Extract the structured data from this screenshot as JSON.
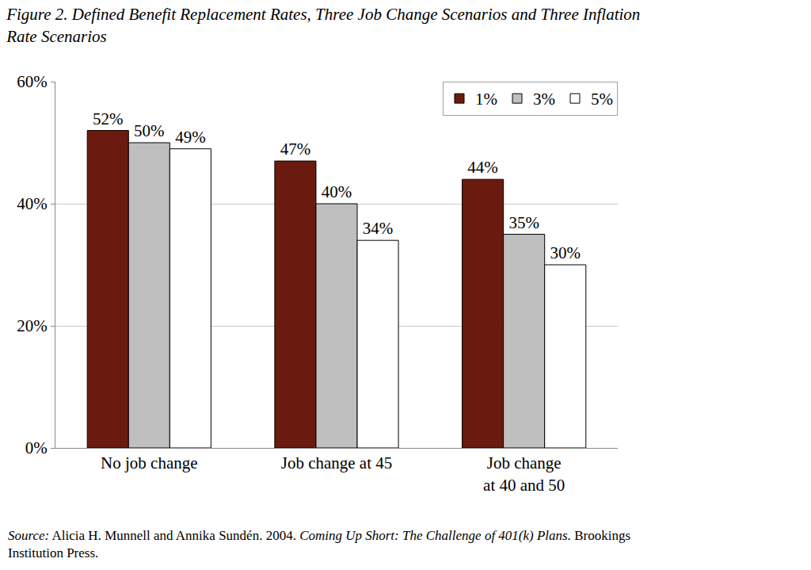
{
  "chart_data": {
    "type": "bar",
    "title": "Figure 2. Defined Benefit Replacement Rates, Three Job Change Scenarios and Three Inflation\nRate Scenarios",
    "source": {
      "label": "Source:",
      "citation": "Alicia H. Munnell and Annika Sundén. 2004.",
      "work": "Coming Up Short: The Challenge of 401(k) Plans.",
      "publisher": "Brookings\nInstitution Press."
    },
    "categories": [
      "No job change",
      "Job change at 45",
      "Job change\nat 40 and 50"
    ],
    "series": [
      {
        "name": "1%",
        "color": "#6b1a10",
        "values": [
          52,
          47,
          44
        ],
        "value_labels": [
          "52%",
          "47%",
          "44%"
        ]
      },
      {
        "name": "3%",
        "color": "#bfbfbf",
        "values": [
          50,
          40,
          35
        ],
        "value_labels": [
          "50%",
          "40%",
          "35%"
        ]
      },
      {
        "name": "5%",
        "color": "#ffffff",
        "values": [
          49,
          34,
          30
        ],
        "value_labels": [
          "49%",
          "34%",
          "30%"
        ]
      }
    ],
    "ylim": [
      0,
      60
    ],
    "yticks": [
      {
        "value": 0,
        "label": "0%"
      },
      {
        "value": 20,
        "label": "20%"
      },
      {
        "value": 40,
        "label": "40%"
      },
      {
        "value": 60,
        "label": "60%"
      }
    ],
    "grid": true,
    "legend": "top right",
    "data_labels": true
  }
}
